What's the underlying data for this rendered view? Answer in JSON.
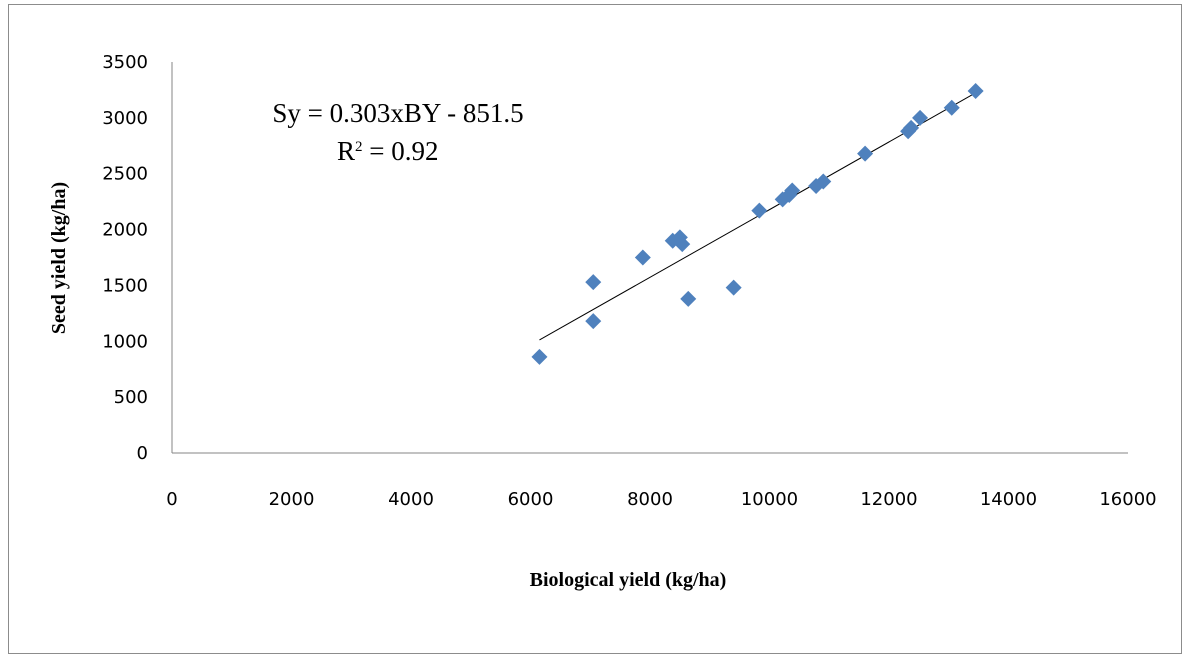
{
  "chart_data": {
    "type": "scatter",
    "xlabel": "Biological  yield (kg/ha)",
    "ylabel": "Seed yield (kg/ha)",
    "xlim": [
      0,
      16000
    ],
    "ylim": [
      0,
      3500
    ],
    "x_ticks": [
      "0",
      "2000",
      "4000",
      "6000",
      "8000",
      "10000",
      "12000",
      "14000",
      "16000"
    ],
    "y_ticks": [
      "0",
      "500",
      "1000",
      "1500",
      "2000",
      "2500",
      "3000",
      "3500"
    ],
    "grid": false,
    "legend": "none",
    "marker_color": "#4f81bd",
    "marker_shape": "diamond",
    "series": [
      {
        "x": [
          6150,
          7050,
          7050,
          7880,
          8380,
          8500,
          8540,
          8640,
          9400,
          9830,
          10220,
          10330,
          10380,
          10780,
          10900,
          11600,
          12320,
          12370,
          12520,
          13050,
          13450
        ],
        "y": [
          860,
          1180,
          1530,
          1750,
          1900,
          1930,
          1870,
          1380,
          1480,
          2170,
          2270,
          2310,
          2350,
          2390,
          2430,
          2680,
          2880,
          2910,
          3000,
          3090,
          3240
        ]
      }
    ],
    "trendline": {
      "slope": 0.303,
      "intercept": -851.5,
      "x_range": [
        6150,
        13450
      ],
      "color": "#000000"
    },
    "equation_text": "Sy = 0.303xBY - 851.5",
    "r2_prefix": "R",
    "r2_sup": "2",
    "r2_rest": " = 0.92"
  }
}
